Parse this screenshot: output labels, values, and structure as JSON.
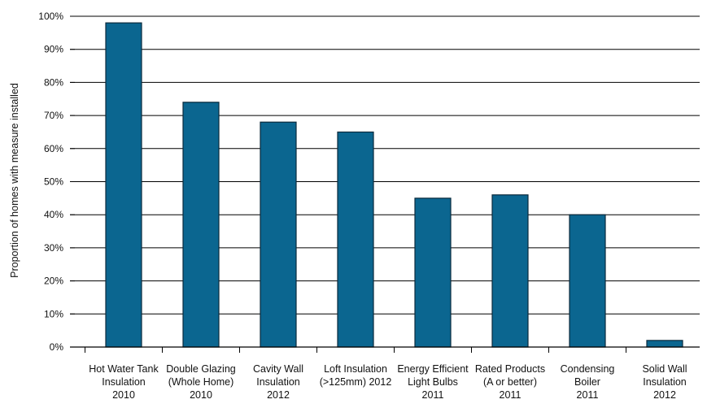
{
  "chart_data": {
    "type": "bar",
    "title": "",
    "xlabel": "",
    "ylabel": "Proportion of homes with measure installed",
    "ylim": [
      0,
      100
    ],
    "yticks": [
      "0%",
      "10%",
      "20%",
      "30%",
      "40%",
      "50%",
      "60%",
      "70%",
      "80%",
      "90%",
      "100%"
    ],
    "grid": true,
    "categories": [
      [
        "Hot Water Tank",
        "Insulation",
        "2010"
      ],
      [
        "Double Glazing",
        "(Whole Home)",
        "2010"
      ],
      [
        "Cavity Wall",
        "Insulation",
        "2012"
      ],
      [
        "Loft Insulation",
        "(>125mm) 2012"
      ],
      [
        "Energy Efficient",
        "Light Bulbs",
        "2011"
      ],
      [
        "Rated Products",
        "(A or better)",
        "2011"
      ],
      [
        "Condensing",
        "Boiler",
        "2011"
      ],
      [
        "Solid Wall",
        "Insulation",
        "2012"
      ]
    ],
    "values": [
      98,
      74,
      68,
      65,
      45,
      46,
      40,
      2
    ],
    "bar_color": "#0b6690",
    "bar_edge_color": "#0a2a3c"
  }
}
